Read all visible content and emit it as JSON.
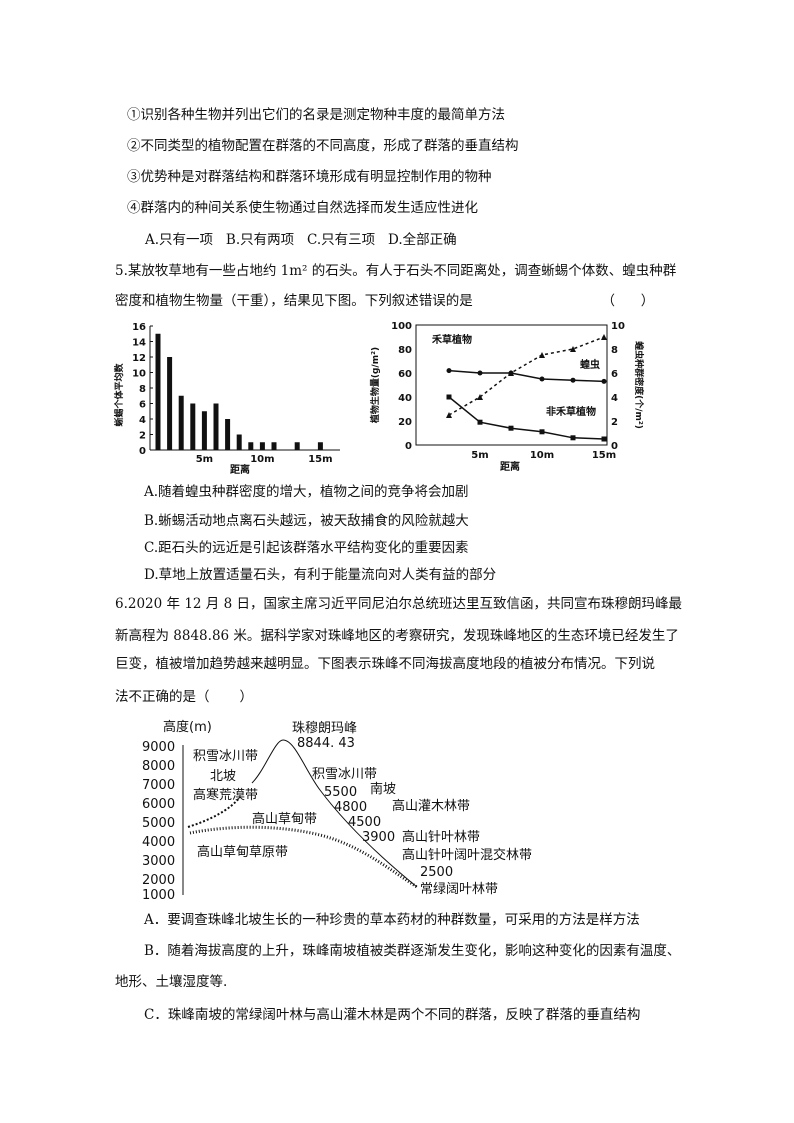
{
  "q4": {
    "statements": [
      "①识别各种生物并列出它们的名录是测定物种丰度的最简单方法",
      "②不同类型的植物配置在群落的不同高度，形成了群落的垂直结构",
      "③优势种是对群落结构和群落环境形成有明显控制作用的物种",
      "④群落内的种间关系使生物通过自然选择而发生适应性进化"
    ],
    "options": "A.只有一项   B.只有两项   C.只有三项   D.全部正确"
  },
  "q5": {
    "lines": [
      "5.某放牧草地有一些占地约 1m² 的石头。有人于石头不同距离处，调查蜥蜴个体数、蝗虫种群",
      "密度和植物生物量（干重），结果见下图。下列叙述错误的是                              （      ）"
    ],
    "options": [
      "A.随着蝗虫种群密度的增大，植物之间的竞争将会加剧",
      "B.蜥蜴活动地点离石头越远，被天敌捕食的风险就越大",
      "C.距石头的远近是引起该群落水平结构变化的重要因素",
      "D.草地上放置适量石头，有利于能量流向对人类有益的部分"
    ]
  },
  "chart_data": [
    {
      "type": "bar",
      "xlabel": "距离",
      "ylabel": "蜥蜴个体平均数",
      "ylim": [
        0,
        16
      ],
      "yticks": [
        0,
        2,
        4,
        6,
        8,
        10,
        12,
        14,
        16
      ],
      "xticklabels": [
        "5m",
        "10m",
        "15m"
      ],
      "x": [
        1,
        2,
        3,
        4,
        5,
        6,
        7,
        8,
        9,
        10,
        11,
        13,
        15
      ],
      "values": [
        15,
        12,
        7,
        6,
        5,
        6,
        4,
        2,
        1,
        1,
        1,
        1,
        1
      ]
    },
    {
      "type": "line",
      "xlabel": "距离",
      "ylabel": "植物生物量(g/m²)",
      "ylabel_right": "蝗虫种群密度(个/m²)",
      "ylim": [
        0,
        100
      ],
      "ylim_right": [
        0,
        10
      ],
      "yticks": [
        0,
        20,
        40,
        60,
        80,
        100
      ],
      "yticks_right": [
        0,
        2,
        4,
        6,
        8,
        10
      ],
      "xticklabels": [
        "5m",
        "10m",
        "15m"
      ],
      "x": [
        2.5,
        5,
        7.5,
        10,
        12.5,
        15
      ],
      "series": [
        {
          "name": "禾草植物",
          "axis": "left",
          "values": [
            62,
            60,
            60,
            55,
            54,
            53
          ]
        },
        {
          "name": "非禾草植物",
          "axis": "left",
          "values": [
            40,
            19,
            14,
            11,
            6,
            5
          ]
        },
        {
          "name": "蝗虫",
          "axis": "right",
          "values": [
            2.5,
            4,
            6,
            7.5,
            8,
            9
          ]
        }
      ]
    }
  ],
  "q6": {
    "lines": [
      "6.2020 年 12 月 8 日，国家主席习近平同尼泊尔总统班达里互致信函，共同宣布珠穆朗玛峰最",
      "新高程为 8848.86 米。据科学家对珠峰地区的考察研究，发现珠峰地区的生态环境已经发生了",
      "巨变，植被增加趋势越来越明显。下图表示珠峰不同海拔高度地段的植被分布情况。下列说",
      "法不正确的是（       ）"
    ],
    "diagram": {
      "ylabel": "高度(m)",
      "yticks": [
        "9000",
        "8000",
        "7000",
        "6000",
        "5000",
        "4000",
        "3000",
        "2000",
        "1000"
      ],
      "peak": "珠穆朗玛峰",
      "peak_height": "8844. 43",
      "north": {
        "slope": "北坡",
        "snow": "积雪冰川带",
        "desert": "高寒荒漠带",
        "steppe": "高山草甸草原带"
      },
      "south": {
        "slope": "南坡",
        "snow": "积雪冰川带",
        "meadow": "高山草甸带",
        "shrub": "高山灌木林带",
        "conifer": "高山针叶林带",
        "mixed": "高山针叶阔叶混交林带",
        "evergreen": "常绿阔叶林带",
        "heights": [
          "5500",
          "4800",
          "4500",
          "3900",
          "2500"
        ]
      }
    },
    "options": [
      "A．要调查珠峰北坡生长的一种珍贵的草本药材的种群数量，可采用的方法是样方法",
      "B．随着海拔高度的上升，珠峰南坡植被类群逐渐发生变化，影响这种变化的因素有温度、",
      "地形、土壤湿度等.",
      "C．珠峰南坡的常绿阔叶林与高山灌木林是两个不同的群落，反映了群落的垂直结构"
    ]
  }
}
